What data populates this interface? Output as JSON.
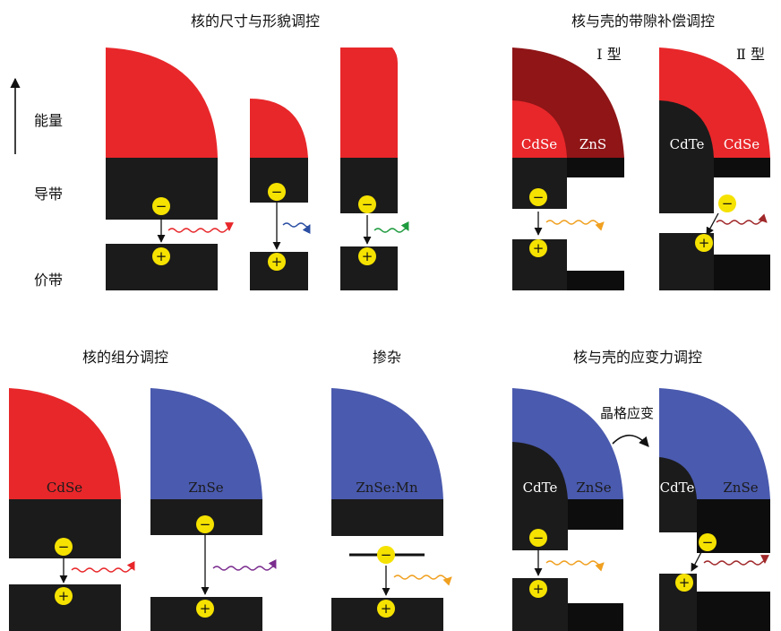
{
  "colors": {
    "red": "#e8272a",
    "blue": "#4a5aae",
    "dark": "#1b1b1b",
    "darker": "#0d0d0d",
    "darkred": "#8f1517",
    "yellow": "#f5e200",
    "arrow_red": "#e8272a",
    "arrow_blue": "#2c4fa3",
    "arrow_green": "#1f9b3f",
    "arrow_orange": "#f0a020",
    "arrow_purple": "#7b2d8e",
    "arrow_brown": "#a0282a"
  },
  "panels": {
    "size": {
      "title": "核的尺寸与形貌调控"
    },
    "shell_bandgap": {
      "title": "核与壳的带隙补偿调控",
      "type1": "Ⅰ 型",
      "type2": "Ⅱ 型"
    },
    "composition": {
      "title": "核的组分调控"
    },
    "doping": {
      "title": "掺杂"
    },
    "strain": {
      "title": "核与壳的应变力调控",
      "strain_label": "晶格应变"
    }
  },
  "axis": {
    "energy": "能量",
    "cb": "导带",
    "vb": "价带"
  },
  "materials": {
    "cdse": "CdSe",
    "zns": "ZnS",
    "cdte": "CdTe",
    "znse": "ZnSe",
    "znse_mn": "ZnSe:Mn"
  },
  "symbols": {
    "minus": "−",
    "plus": "+"
  }
}
